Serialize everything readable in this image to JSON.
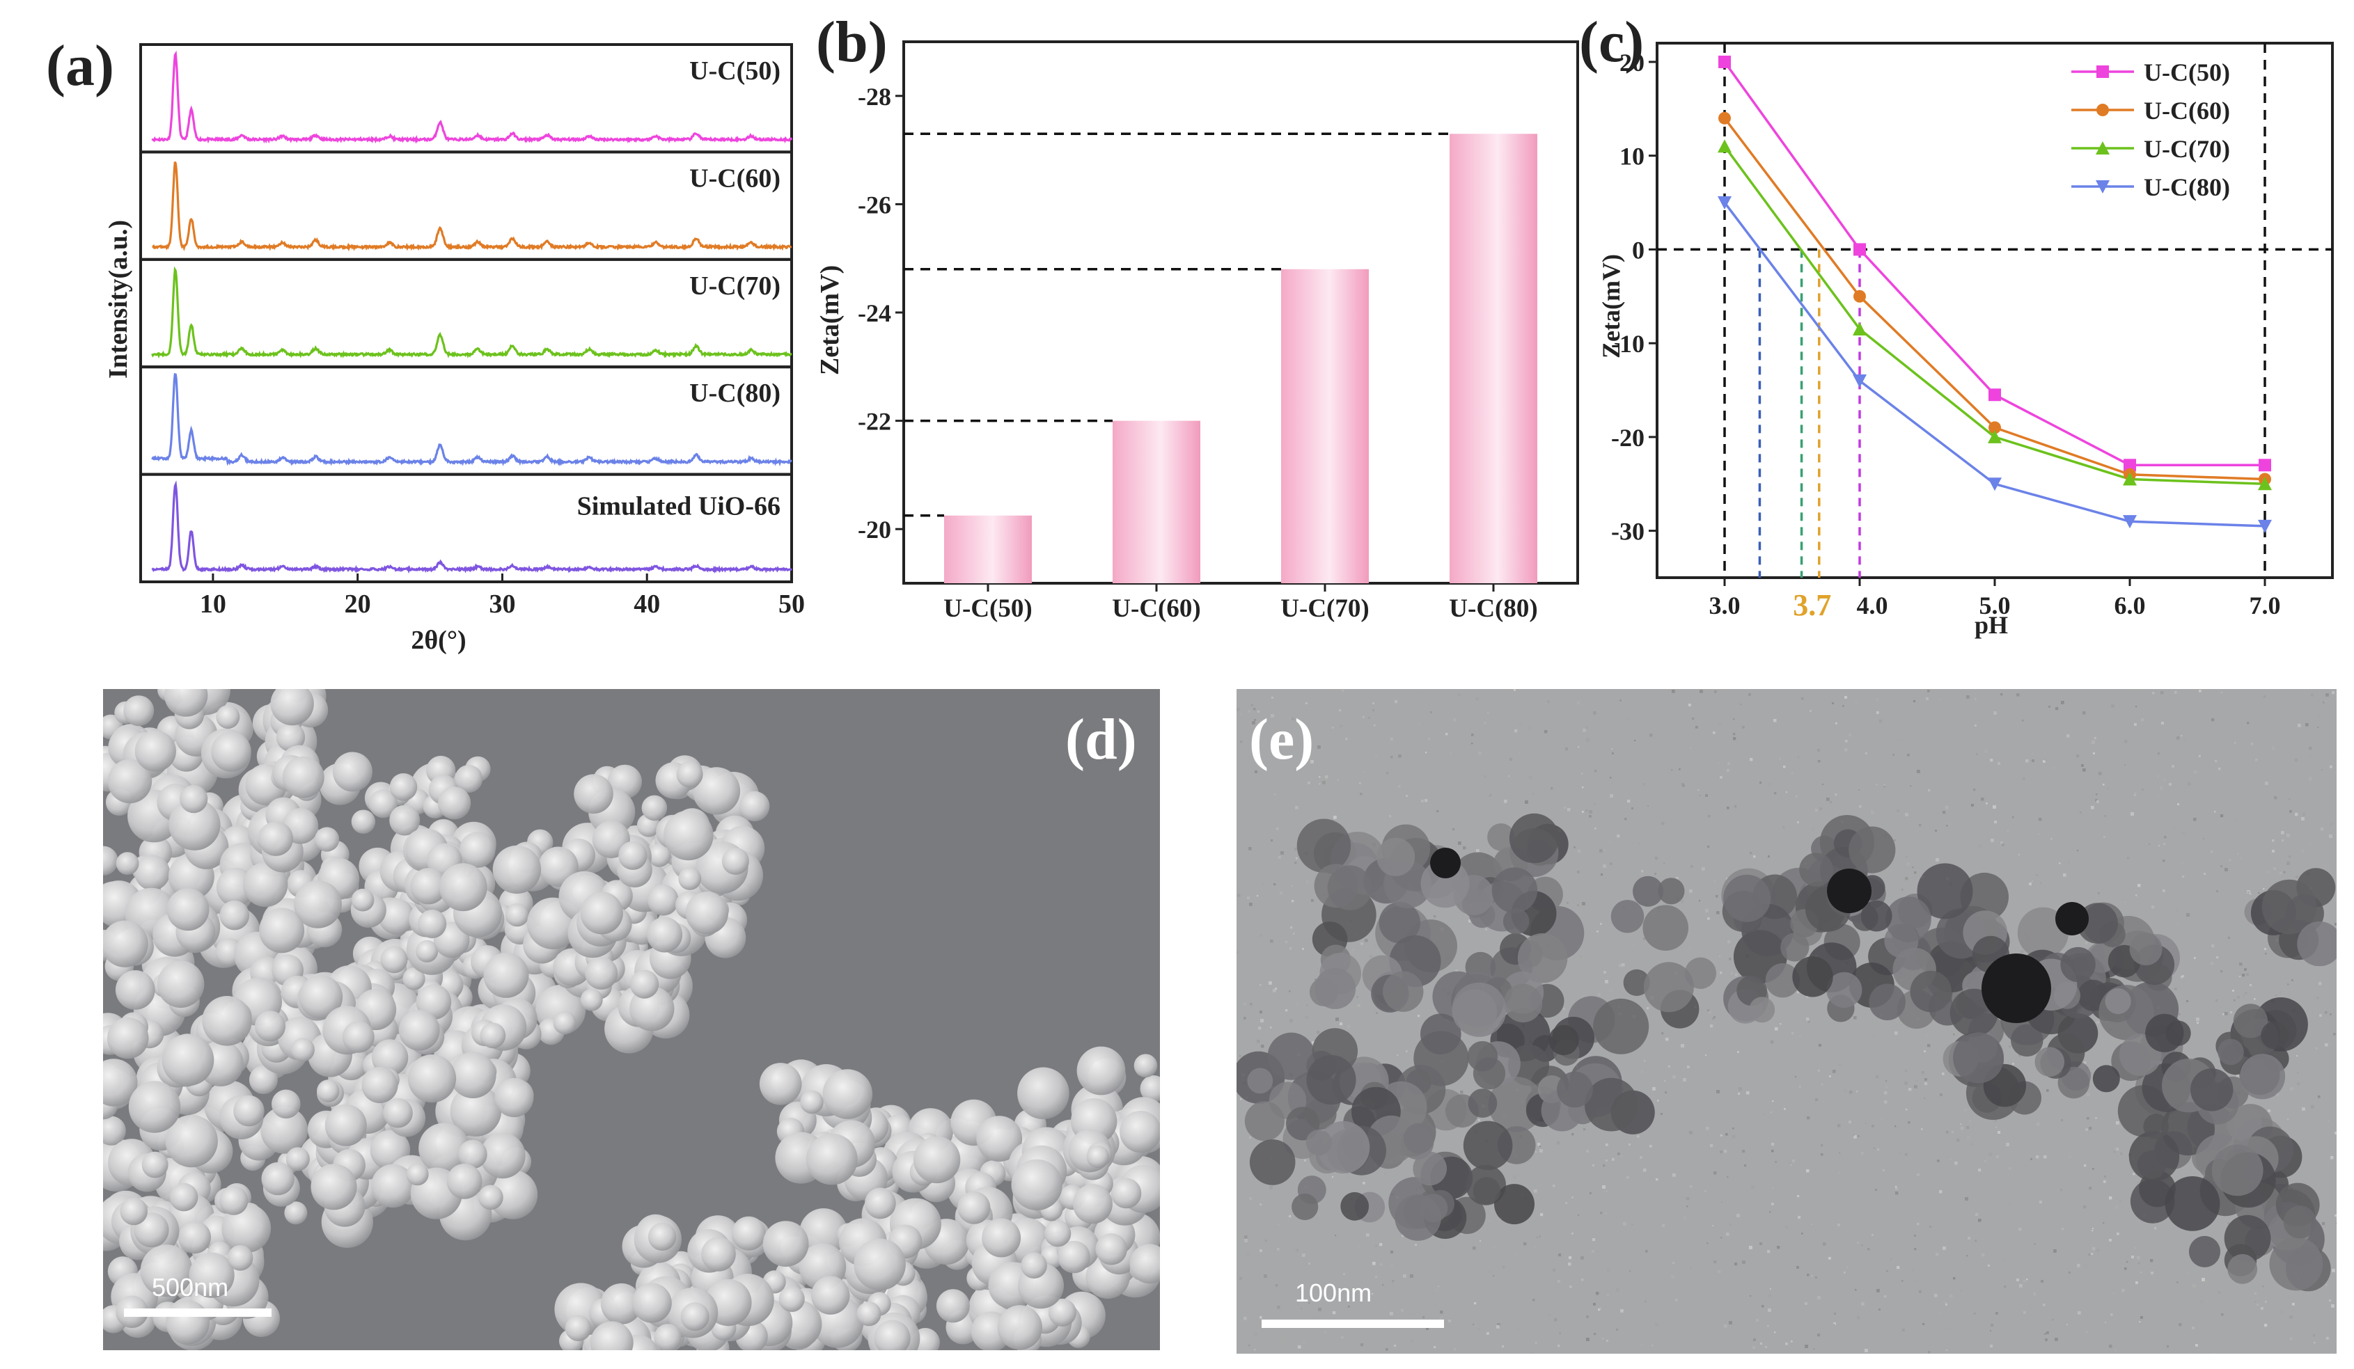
{
  "panels": {
    "a": {
      "letter": "(a)",
      "xlabel": "2θ(°)",
      "ylabel": "Intensity(a.u.)",
      "xticks": [
        "10",
        "20",
        "30",
        "40",
        "50"
      ],
      "labels": [
        "U-C(50)",
        "U-C(60)",
        "U-C(70)",
        "U-C(80)",
        "Simulated UiO-66"
      ],
      "colors": [
        "#ee44dd",
        "#e07b25",
        "#6cc21c",
        "#6b82e8",
        "#7f55e0"
      ]
    },
    "b": {
      "letter": "(b)",
      "ylabel": "Zeta(mV)",
      "yticks": [
        "-20",
        "-22",
        "-24",
        "-26",
        "-28"
      ]
    },
    "c": {
      "letter": "(c)",
      "ylabel": "Zeta(mV)",
      "xlabel": "pH",
      "xticks": [
        "3.0",
        "4.0",
        "5.0",
        "6.0",
        "7.0"
      ],
      "yticks": [
        "20",
        "10",
        "0",
        "-10",
        "-20",
        "-30"
      ],
      "highlight": "3.7"
    },
    "d": {
      "letter": "(d)",
      "scalebar": "500nm"
    },
    "e": {
      "letter": "(e)",
      "scalebar": "100nm"
    }
  },
  "chart_data": [
    {
      "type": "line",
      "panel": "a",
      "xlabel": "2θ(°)",
      "ylabel": "Intensity(a.u.)",
      "xlim": [
        5,
        50
      ],
      "peaks_2theta": [
        7.4,
        8.5,
        12.0,
        14.8,
        17.1,
        22.2,
        25.7,
        28.3,
        30.7,
        33.1,
        36.0,
        40.6,
        43.4,
        47.2
      ],
      "series": [
        {
          "name": "U-C(50)",
          "color": "#ee44dd",
          "peak_heights": [
            1.0,
            0.35,
            0.05,
            0.04,
            0.05,
            0.04,
            0.2,
            0.05,
            0.07,
            0.05,
            0.04,
            0.04,
            0.07,
            0.04
          ]
        },
        {
          "name": "U-C(60)",
          "color": "#e07b25",
          "peak_heights": [
            1.0,
            0.33,
            0.06,
            0.05,
            0.08,
            0.05,
            0.22,
            0.06,
            0.1,
            0.06,
            0.05,
            0.05,
            0.1,
            0.05
          ]
        },
        {
          "name": "U-C(70)",
          "color": "#6cc21c",
          "peak_heights": [
            1.0,
            0.35,
            0.07,
            0.05,
            0.07,
            0.05,
            0.23,
            0.06,
            0.1,
            0.06,
            0.06,
            0.05,
            0.1,
            0.05
          ]
        },
        {
          "name": "U-C(80)",
          "color": "#6b82e8",
          "peak_heights": [
            1.0,
            0.33,
            0.08,
            0.05,
            0.06,
            0.05,
            0.2,
            0.05,
            0.07,
            0.06,
            0.05,
            0.04,
            0.08,
            0.04
          ]
        },
        {
          "name": "Simulated UiO-66",
          "color": "#7f55e0",
          "peak_heights": [
            1.0,
            0.45,
            0.05,
            0.03,
            0.03,
            0.03,
            0.08,
            0.03,
            0.04,
            0.03,
            0.03,
            0.03,
            0.04,
            0.03
          ]
        }
      ]
    },
    {
      "type": "bar",
      "panel": "b",
      "categories": [
        "U-C(50)",
        "U-C(60)",
        "U-C(70)",
        "U-C(80)"
      ],
      "values": [
        -20.25,
        -22.0,
        -24.8,
        -27.3
      ],
      "ylabel": "Zeta(mV)",
      "ylim": [
        -19.0,
        -29.0
      ],
      "reference_lines": true
    },
    {
      "type": "line",
      "panel": "c",
      "xlabel": "pH",
      "ylabel": "Zeta(mV)",
      "x": [
        3.0,
        4.0,
        5.0,
        6.0,
        7.0
      ],
      "xlim": [
        2.5,
        7.5
      ],
      "ylim": [
        -35,
        22
      ],
      "legend": "top-right",
      "series": [
        {
          "name": "U-C(50)",
          "color": "#ee44dd",
          "marker": "square",
          "values": [
            20.0,
            0.0,
            -15.5,
            -23.0,
            -23.0
          ]
        },
        {
          "name": "U-C(60)",
          "color": "#e07b25",
          "marker": "circle",
          "values": [
            14.0,
            -5.0,
            -19.0,
            -24.0,
            -24.5
          ]
        },
        {
          "name": "U-C(70)",
          "color": "#6cc21c",
          "marker": "triangle-up",
          "values": [
            11.0,
            -8.5,
            -20.0,
            -24.5,
            -25.0
          ]
        },
        {
          "name": "U-C(80)",
          "color": "#6b82e8",
          "marker": "triangle-down",
          "values": [
            5.0,
            -14.0,
            -25.0,
            -29.0,
            -29.5
          ]
        }
      ],
      "zero_crossings": [
        {
          "series": "U-C(50)",
          "ph": 4.0,
          "color": "#c23ae0"
        },
        {
          "series": "U-C(60)",
          "ph": 3.7,
          "color": "#e0a22a"
        },
        {
          "series": "U-C(70)",
          "ph": 3.57,
          "color": "#3aa070"
        },
        {
          "series": "U-C(80)",
          "ph": 3.26,
          "color": "#3b5fb8"
        }
      ]
    }
  ]
}
